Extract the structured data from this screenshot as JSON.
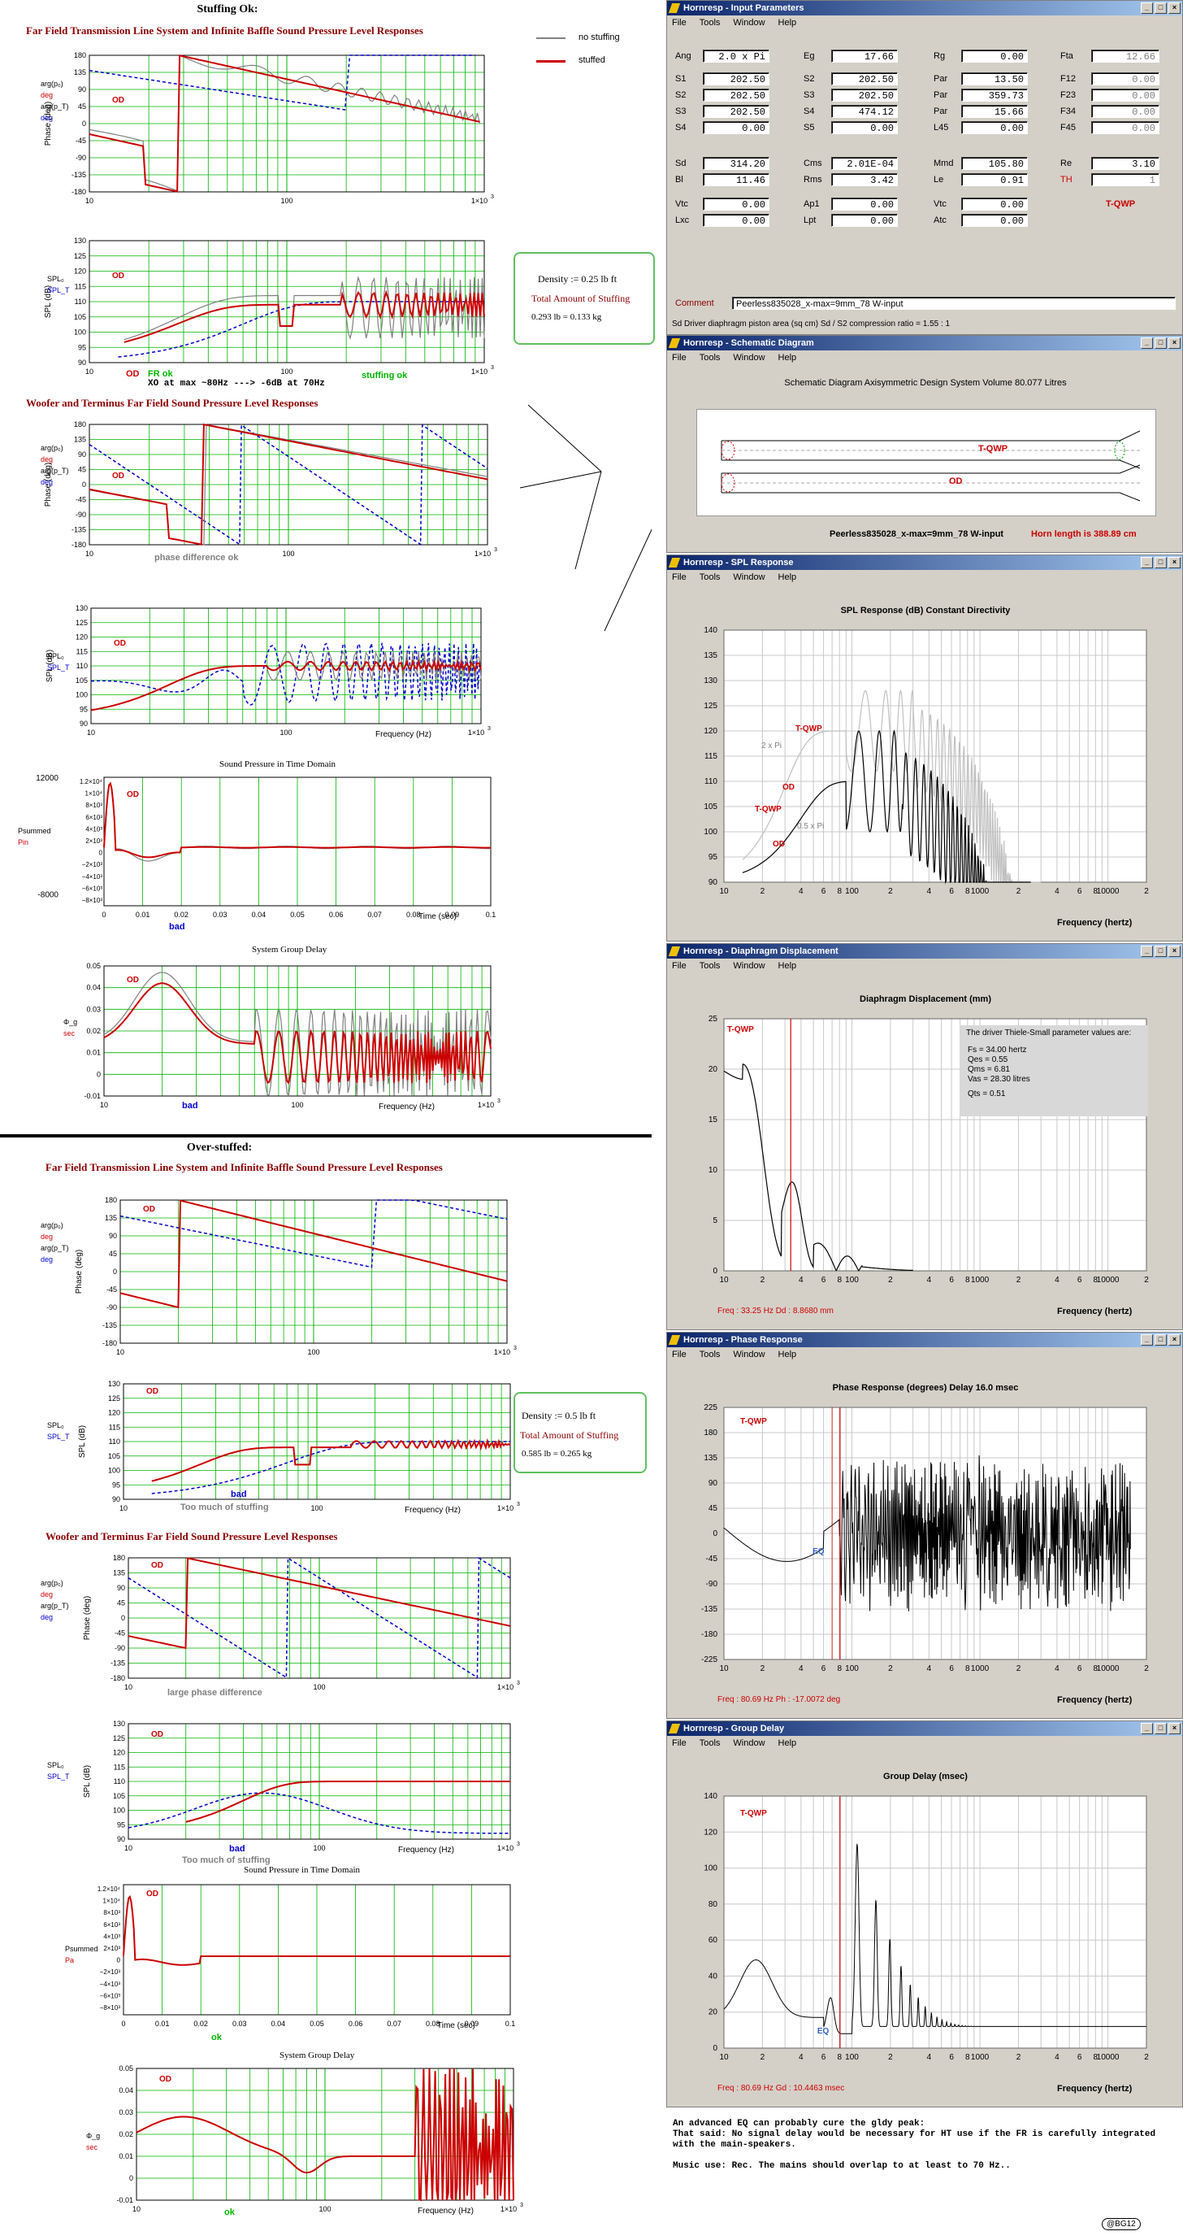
{
  "left": {
    "stuffing_ok_title": "Stuffing Ok:",
    "ftl_title": "Far Field Transmission Line System and Infinite Baffle Sound Pressure Level Responses",
    "legend_no_stuffing": "no stuffing",
    "legend_stuffed": "stuffed",
    "wt_title": "Woofer and Terminus Far Field Sound Pressure Level Responses",
    "density1_a": "Density := 0.25 lb ft",
    "density1_b": "Total Amount of Stuffing",
    "density1_c": "0.293 lb = 0.133 kg",
    "fr_ok": "FR ok",
    "stuffing_ok": "stuffing ok",
    "xo_note": "XO at max ~80Hz ---> -6dB at 70Hz",
    "phase_diff_ok": "phase difference ok",
    "spt_title": "Sound Pressure in Time Domain",
    "sgd_title": "System Group Delay",
    "bad": "bad",
    "od": "OD",
    "over_stuffed_title": "Over-stuffed:",
    "density2_a": "Density := 0.5 lb ft",
    "density2_b": "Total Amount of Stuffing",
    "density2_c": "0.585 lb = 0.265 kg",
    "too_much": "Too much of stuffing",
    "large_phase_diff": "large phase difference",
    "ok": "ok",
    "freq_hz": "Frequency (Hz)",
    "time_sec": "Time (sec)",
    "phase_deg": "Phase (deg)",
    "spl_db": "SPL (dB)"
  },
  "input_params": {
    "title": "Hornresp - Input Parameters",
    "menu": [
      "File",
      "Tools",
      "Window",
      "Help"
    ],
    "rows": [
      [
        [
          "Ang",
          "2.0 x Pi",
          false
        ],
        [
          "Eg",
          "17.66",
          false
        ],
        [
          "Rg",
          "0.00",
          false
        ],
        [
          "Fta",
          "12.66",
          true
        ]
      ],
      [
        [
          "S1",
          "202.50",
          false
        ],
        [
          "S2",
          "202.50",
          false
        ],
        [
          "Par",
          "13.50",
          false
        ],
        [
          "F12",
          "0.00",
          true
        ]
      ],
      [
        [
          "S2",
          "202.50",
          false
        ],
        [
          "S3",
          "202.50",
          false
        ],
        [
          "Par",
          "359.73",
          false
        ],
        [
          "F23",
          "0.00",
          true
        ]
      ],
      [
        [
          "S3",
          "202.50",
          false
        ],
        [
          "S4",
          "474.12",
          false
        ],
        [
          "Par",
          "15.66",
          false
        ],
        [
          "F34",
          "0.00",
          true
        ]
      ],
      [
        [
          "S4",
          "0.00",
          false
        ],
        [
          "S5",
          "0.00",
          false
        ],
        [
          "L45",
          "0.00",
          false
        ],
        [
          "F45",
          "0.00",
          true
        ]
      ],
      [
        [
          "Sd",
          "314.20",
          false
        ],
        [
          "Cms",
          "2.01E-04",
          false
        ],
        [
          "Mmd",
          "105.80",
          false
        ],
        [
          "Re",
          "3.10",
          false
        ]
      ],
      [
        [
          "Bl",
          "11.46",
          false
        ],
        [
          "Rms",
          "3.42",
          false
        ],
        [
          "Le",
          "0.91",
          false
        ],
        [
          "TH",
          "1",
          true
        ]
      ],
      [
        [
          "Vtc",
          "0.00",
          false
        ],
        [
          "Ap1",
          "0.00",
          false
        ],
        [
          "Vtc",
          "0.00",
          false
        ],
        [
          "T-QWP",
          "",
          false
        ]
      ],
      [
        [
          "Lxc",
          "0.00",
          false
        ],
        [
          "Lpt",
          "0.00",
          false
        ],
        [
          "Atc",
          "0.00",
          false
        ],
        [
          "",
          "",
          false
        ]
      ]
    ],
    "comment_label": "Comment",
    "comment_value": "Peerless835028_x-max=9mm_78 W-input",
    "status": "Sd   Driver diaphragm piston area (sq cm)   Sd / S2 compression ratio = 1.55 : 1"
  },
  "schematic": {
    "title": "Hornresp - Schematic Diagram",
    "menu": [
      "File",
      "Tools",
      "Window",
      "Help"
    ],
    "heading": "Schematic Diagram   Axisymmetric Design   System Volume 80.077 Litres",
    "tqwp": "T-QWP",
    "od": "OD",
    "footer_left": "Peerless835028_x-max=9mm_78 W-input",
    "footer_right": "Horn length is 388.89 cm"
  },
  "spl_win": {
    "title": "Hornresp - SPL Response",
    "menu": [
      "File",
      "Tools",
      "Window",
      "Help"
    ],
    "heading": "SPL Response (dB)   Constant Directivity",
    "xlabel": "Frequency (hertz)",
    "labels": [
      "T-QWP",
      "2 x Pi",
      "OD",
      "T-QWP",
      "0.5 x Pi",
      "OD"
    ]
  },
  "disp_win": {
    "title": "Hornresp - Diaphragm Displacement",
    "menu": [
      "File",
      "Tools",
      "Window",
      "Help"
    ],
    "heading": "Diaphragm Displacement (mm)",
    "xlabel": "Frequency (hertz)",
    "tqwp": "T-QWP",
    "ts_head": "The driver Thiele-Small parameter values are:",
    "ts_lines": [
      "Fs = 34.00 hertz",
      "Qes = 0.55",
      "Qms = 6.81",
      "Vas = 28.30 litres",
      "",
      "Qts = 0.51"
    ],
    "readout": "Freq : 33.25 Hz     Dd : 8.8680 mm"
  },
  "phase_win": {
    "title": "Hornresp - Phase Response",
    "menu": [
      "File",
      "Tools",
      "Window",
      "Help"
    ],
    "heading": "Phase Response (degrees)   Delay 16.0 msec",
    "xlabel": "Frequency (hertz)",
    "tqwp": "T-QWP",
    "eq": "EQ",
    "readout": "Freq : 80.69 Hz     Ph : -17.0072 deg"
  },
  "gd_win": {
    "title": "Hornresp - Group Delay",
    "menu": [
      "File",
      "Tools",
      "Window",
      "Help"
    ],
    "heading": "Group Delay (msec)",
    "xlabel": "Frequency (hertz)",
    "tqwp": "T-QWP",
    "eq": "EQ",
    "readout": "Freq : 80.69 Hz     Gd : 10.4463 msec"
  },
  "notes": {
    "l1": "An advanced EQ can probably cure the gldy peak:",
    "l2": "That said: No signal delay would  be necessary for HT use if the FR is carefully integrated",
    "l3": "with the main-speakers.",
    "l4": "Music use: Rec. The mains should overlap to at least to 70 Hz..",
    "sig": "@BG12"
  },
  "colors": {
    "red": "#cc0000",
    "blue": "#0000cc",
    "gray": "#808080",
    "grid": "#00b400",
    "od_red": "#cc0000"
  },
  "chart_data": [
    {
      "type": "line",
      "title": "Phase (deg)",
      "xscale": "log",
      "xlim": [
        10,
        1000
      ],
      "ylim": [
        -180,
        180
      ],
      "yticks": [
        -180,
        -135,
        -90,
        -45,
        0,
        45,
        90,
        135,
        180
      ],
      "series": [
        {
          "name": "no stuffing"
        },
        {
          "name": "stuffed"
        }
      ]
    },
    {
      "type": "line",
      "title": "SPL (dB)",
      "xscale": "log",
      "xlim": [
        10,
        1000
      ],
      "ylim": [
        90,
        130
      ],
      "yticks": [
        90,
        95,
        100,
        105,
        110,
        115,
        120,
        125,
        130
      ],
      "series": [
        {
          "name": "no stuffing"
        },
        {
          "name": "stuffed"
        }
      ]
    },
    {
      "type": "line",
      "title": "SPL Response (dB)   Constant Directivity",
      "xscale": "log",
      "xlim": [
        10,
        20000
      ],
      "ylim": [
        90,
        140
      ],
      "yticks": [
        90,
        95,
        100,
        105,
        110,
        115,
        120,
        125,
        130,
        135,
        140
      ]
    },
    {
      "type": "line",
      "title": "Diaphragm Displacement (mm)",
      "xscale": "log",
      "xlim": [
        10,
        20000
      ],
      "ylim": [
        0,
        25
      ],
      "yticks": [
        0,
        5,
        10,
        15,
        20,
        25
      ],
      "x": [
        10,
        13,
        20,
        30,
        33.25,
        40,
        55,
        70,
        100,
        200
      ],
      "values": [
        20,
        21,
        10,
        3,
        8.9,
        7,
        3,
        1.5,
        0.5,
        0.1
      ]
    },
    {
      "type": "line",
      "title": "Phase Response (degrees)   Delay 16.0 msec",
      "xscale": "log",
      "xlim": [
        10,
        20000
      ],
      "ylim": [
        -225,
        225
      ],
      "yticks": [
        -225,
        -180,
        -135,
        -90,
        -45,
        0,
        45,
        90,
        135,
        180,
        225
      ]
    },
    {
      "type": "line",
      "title": "Group Delay (msec)",
      "xscale": "log",
      "xlim": [
        10,
        20000
      ],
      "ylim": [
        0,
        140
      ],
      "yticks": [
        0,
        20,
        40,
        60,
        80,
        100,
        120,
        140
      ]
    }
  ]
}
